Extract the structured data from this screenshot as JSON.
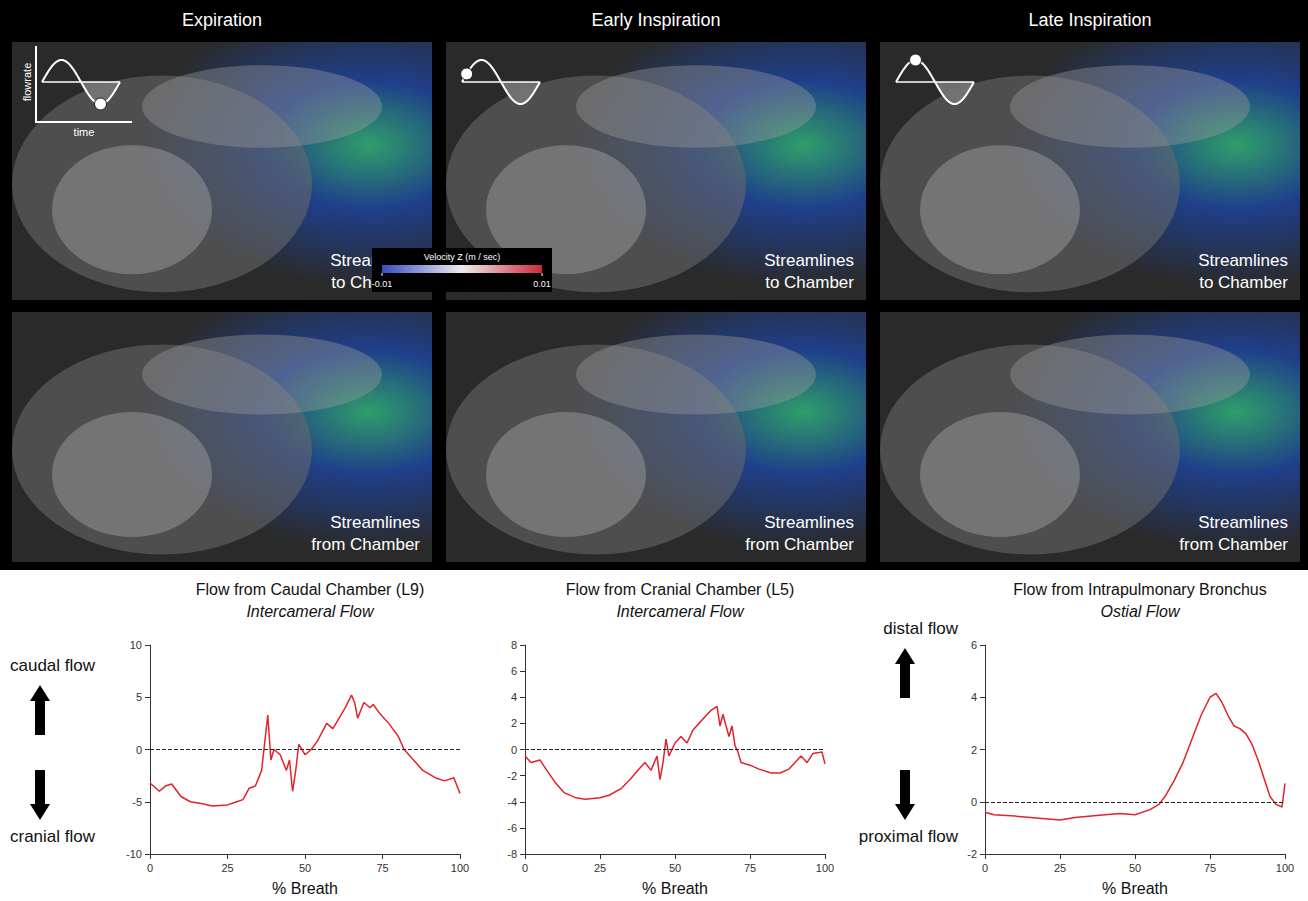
{
  "figure": {
    "columns": [
      "Expiration",
      "Early Inspiration",
      "Late Inspiration"
    ],
    "row_labels": [
      "Streamlines to Chamber",
      "Streamlines from Chamber"
    ],
    "inset_axes": {
      "y_label": "flowrate",
      "x_label": "time"
    },
    "colorbar": {
      "label": "Velocity Z (m / sec)",
      "range": [
        -0.01,
        0.01
      ],
      "ticks": [
        -0.01,
        0.01
      ]
    }
  },
  "chart_data": [
    {
      "type": "line",
      "title": "Flow from Caudal Chamber (L9)",
      "subtitle": "Intercameral Flow",
      "x_label": "% Breath",
      "direction_labels": {
        "positive": "caudal flow",
        "negative": "cranial flow"
      },
      "color": "#e3222b",
      "x": [
        0,
        3,
        5,
        7,
        10,
        13,
        17,
        20,
        25,
        28,
        30,
        32,
        34,
        36,
        38,
        39,
        40,
        42,
        44,
        45,
        46,
        47,
        48,
        50,
        52,
        54,
        57,
        59,
        61,
        63,
        65,
        66,
        67,
        69,
        71,
        72,
        74,
        77,
        80,
        82,
        85,
        88,
        92,
        95,
        98,
        100
      ],
      "values": [
        -3.2,
        -4,
        -3.5,
        -3.3,
        -4.5,
        -5,
        -5.2,
        -5.4,
        -5.3,
        -5,
        -4.8,
        -3.7,
        -3.5,
        -2,
        3.3,
        -1,
        0,
        -0.5,
        -2,
        -1,
        -4,
        -2,
        0.5,
        -0.5,
        0,
        0.8,
        2.5,
        2,
        3,
        4,
        5.2,
        4.5,
        3,
        4.5,
        4,
        4.3,
        3.5,
        2.5,
        1.3,
        0,
        -1,
        -2,
        -2.7,
        -3,
        -2.7,
        -4.2
      ],
      "xlim": [
        0,
        100
      ],
      "xticks": [
        0,
        25,
        50,
        75,
        100
      ],
      "ylim": [
        -10,
        10
      ],
      "yticks": [
        -10,
        -5,
        0,
        5,
        10
      ],
      "reference_line": 0,
      "grid": false
    },
    {
      "type": "line",
      "title": "Flow from Cranial Chamber (L5)",
      "subtitle": "Intercameral Flow",
      "x_label": "% Breath",
      "color": "#e3222b",
      "x": [
        0,
        2,
        5,
        7,
        10,
        13,
        17,
        20,
        25,
        28,
        32,
        35,
        38,
        40,
        42,
        44,
        45,
        46,
        47,
        48,
        50,
        52,
        54,
        56,
        58,
        60,
        62,
        64,
        65,
        66,
        67,
        68,
        69,
        70,
        71,
        72,
        75,
        78,
        82,
        85,
        88,
        90,
        92,
        94,
        96,
        99,
        100
      ],
      "values": [
        -0.5,
        -1,
        -0.8,
        -1.5,
        -2.5,
        -3.3,
        -3.7,
        -3.8,
        -3.7,
        -3.5,
        -3,
        -2.3,
        -1.5,
        -1,
        -1.6,
        -0.5,
        -2.3,
        -1,
        0.8,
        -0.5,
        0.5,
        1,
        0.5,
        1.5,
        2,
        2.5,
        3,
        3.3,
        1.8,
        2.7,
        1.8,
        1,
        1.8,
        0.3,
        -0.2,
        -1,
        -1.2,
        -1.5,
        -1.8,
        -1.8,
        -1.5,
        -1,
        -0.5,
        -1,
        -0.3,
        -0.2,
        -1.1
      ],
      "xlim": [
        0,
        100
      ],
      "xticks": [
        0,
        25,
        50,
        75,
        100
      ],
      "ylim": [
        -8,
        8
      ],
      "yticks": [
        -8,
        -6,
        -4,
        -2,
        0,
        2,
        4,
        6,
        8
      ],
      "reference_line": 0,
      "grid": false
    },
    {
      "type": "line",
      "title": "Flow from Intrapulmonary Bronchus",
      "subtitle": "Ostial Flow",
      "x_label": "% Breath",
      "direction_labels": {
        "positive": "distal flow",
        "negative": "proximal flow"
      },
      "color": "#e3222b",
      "x": [
        0,
        3,
        10,
        20,
        25,
        30,
        40,
        45,
        50,
        55,
        58,
        60,
        63,
        66,
        69,
        72,
        75,
        77,
        79,
        81,
        83,
        85,
        87,
        89,
        91,
        93,
        95,
        97,
        99,
        100
      ],
      "values": [
        -0.4,
        -0.5,
        -0.55,
        -0.65,
        -0.7,
        -0.6,
        -0.5,
        -0.45,
        -0.5,
        -0.3,
        -0.1,
        0.2,
        0.8,
        1.5,
        2.4,
        3.3,
        4,
        4.15,
        3.8,
        3.3,
        2.9,
        2.8,
        2.6,
        2.2,
        1.6,
        0.9,
        0.2,
        -0.1,
        -0.2,
        0.7
      ],
      "xlim": [
        0,
        100
      ],
      "xticks": [
        0,
        25,
        50,
        75,
        100
      ],
      "ylim": [
        -2,
        6
      ],
      "yticks": [
        -2,
        0,
        2,
        4,
        6
      ],
      "reference_line": 0,
      "grid": false
    }
  ]
}
